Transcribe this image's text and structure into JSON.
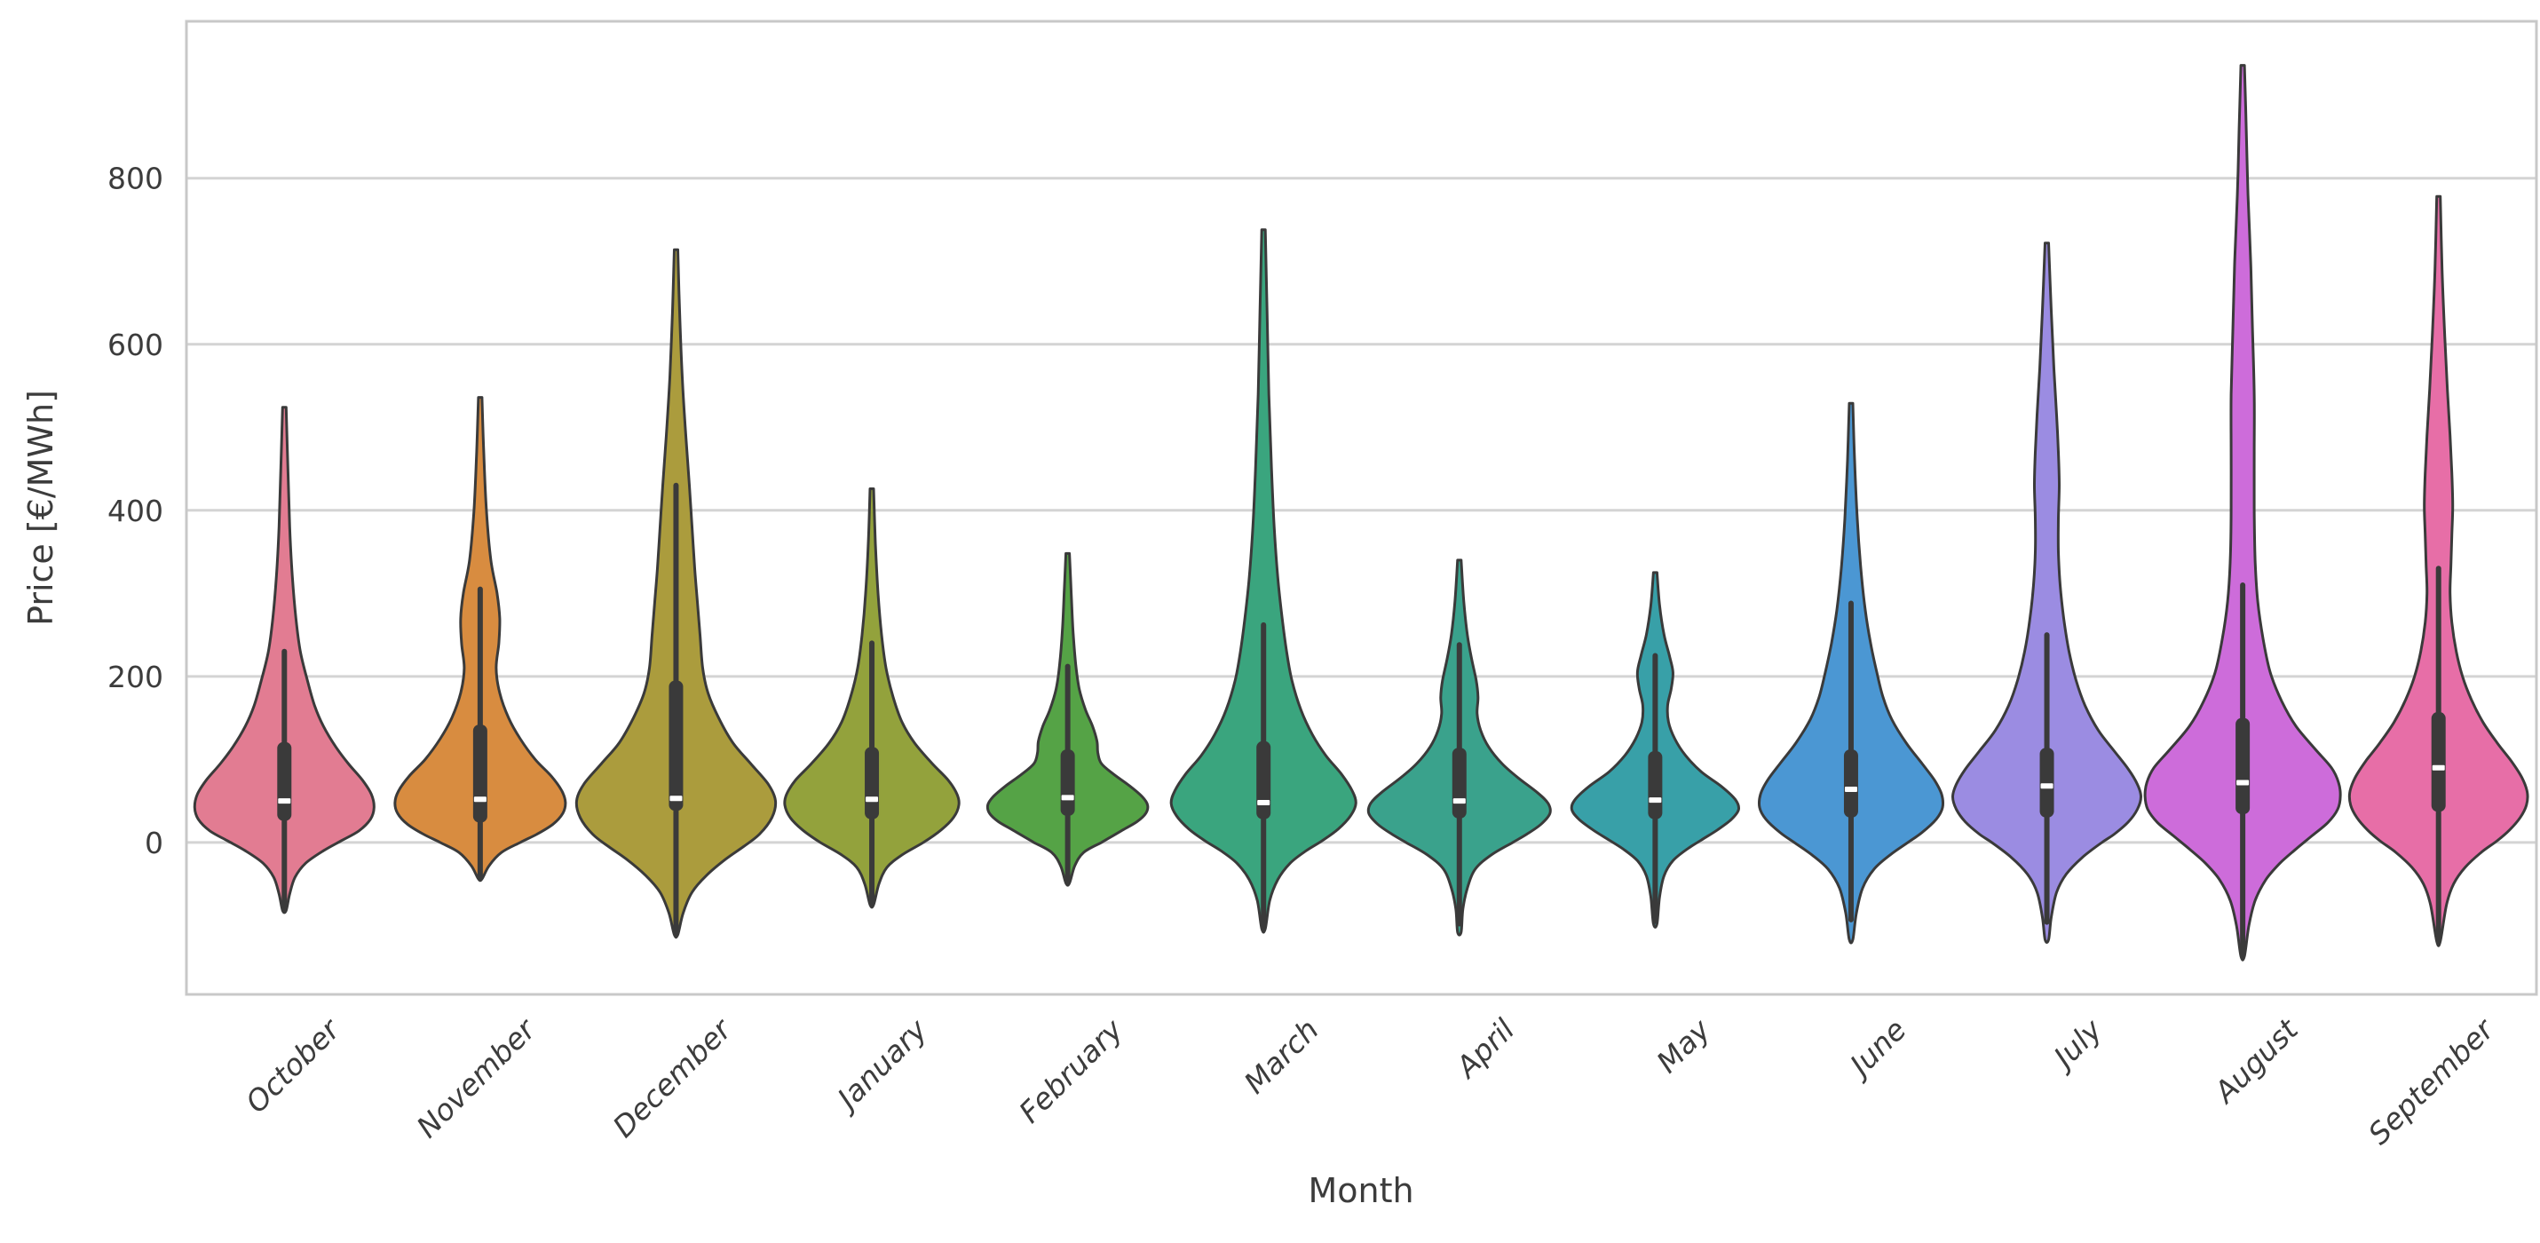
{
  "chart_data": {
    "type": "violin",
    "title": "",
    "xlabel": "Month",
    "ylabel": "Price [€/MWh]",
    "categories": [
      "October",
      "November",
      "December",
      "January",
      "February",
      "March",
      "April",
      "May",
      "June",
      "July",
      "August",
      "September"
    ],
    "yticks": [
      0,
      200,
      400,
      600,
      800
    ],
    "ylim": [
      -183,
      989
    ],
    "grid": true,
    "legend": "none",
    "colors": {
      "frame": "#c8c8c8",
      "gridline": "#d4d4d4",
      "ink": "#3c3c3c",
      "violin_edge": "#3a3a3a",
      "box_fill": "#3a3a3a",
      "median": "#ffffff",
      "background": "#ffffff"
    },
    "series": [
      {
        "name": "October",
        "color": "#e27c92",
        "min": -82,
        "max": 524,
        "q1": 26,
        "median": 50,
        "q3": 121,
        "whisker_low": -82,
        "whisker_high": 230,
        "profile": [
          [
            524,
            2
          ],
          [
            450,
            4
          ],
          [
            380,
            6
          ],
          [
            320,
            9
          ],
          [
            270,
            13
          ],
          [
            230,
            18
          ],
          [
            195,
            26
          ],
          [
            165,
            34
          ],
          [
            140,
            44
          ],
          [
            115,
            58
          ],
          [
            95,
            72
          ],
          [
            75,
            88
          ],
          [
            58,
            98
          ],
          [
            42,
            101
          ],
          [
            28,
            97
          ],
          [
            14,
            84
          ],
          [
            2,
            64
          ],
          [
            -10,
            44
          ],
          [
            -25,
            24
          ],
          [
            -42,
            12
          ],
          [
            -62,
            6
          ],
          [
            -82,
            2
          ]
        ]
      },
      {
        "name": "November",
        "color": "#d88c40",
        "min": -44,
        "max": 536,
        "q1": 24,
        "median": 52,
        "q3": 142,
        "whisker_low": -44,
        "whisker_high": 305,
        "profile": [
          [
            536,
            2
          ],
          [
            470,
            4
          ],
          [
            400,
            7
          ],
          [
            340,
            12
          ],
          [
            300,
            19
          ],
          [
            270,
            22
          ],
          [
            240,
            21
          ],
          [
            210,
            18
          ],
          [
            180,
            22
          ],
          [
            150,
            32
          ],
          [
            125,
            45
          ],
          [
            100,
            62
          ],
          [
            80,
            80
          ],
          [
            62,
            92
          ],
          [
            48,
            96
          ],
          [
            35,
            93
          ],
          [
            22,
            82
          ],
          [
            10,
            64
          ],
          [
            0,
            45
          ],
          [
            -12,
            24
          ],
          [
            -28,
            10
          ],
          [
            -44,
            2
          ]
        ]
      },
      {
        "name": "December",
        "color": "#ab9c3d",
        "min": -111,
        "max": 714,
        "q1": 38,
        "median": 53,
        "q3": 195,
        "whisker_low": -111,
        "whisker_high": 430,
        "profile": [
          [
            714,
            2
          ],
          [
            640,
            4
          ],
          [
            560,
            7
          ],
          [
            490,
            11
          ],
          [
            430,
            15
          ],
          [
            380,
            18
          ],
          [
            330,
            21
          ],
          [
            290,
            24
          ],
          [
            250,
            27
          ],
          [
            210,
            30
          ],
          [
            180,
            36
          ],
          [
            150,
            48
          ],
          [
            120,
            64
          ],
          [
            95,
            84
          ],
          [
            70,
            104
          ],
          [
            50,
            112
          ],
          [
            30,
            108
          ],
          [
            10,
            94
          ],
          [
            -5,
            76
          ],
          [
            -20,
            56
          ],
          [
            -40,
            34
          ],
          [
            -60,
            18
          ],
          [
            -85,
            8
          ],
          [
            -111,
            2
          ]
        ]
      },
      {
        "name": "January",
        "color": "#93a23c",
        "min": -75,
        "max": 426,
        "q1": 28,
        "median": 52,
        "q3": 115,
        "whisker_low": -75,
        "whisker_high": 240,
        "profile": [
          [
            426,
            2
          ],
          [
            360,
            4
          ],
          [
            300,
            7
          ],
          [
            250,
            11
          ],
          [
            210,
            16
          ],
          [
            175,
            24
          ],
          [
            145,
            34
          ],
          [
            120,
            48
          ],
          [
            95,
            68
          ],
          [
            75,
            86
          ],
          [
            58,
            96
          ],
          [
            45,
            98
          ],
          [
            30,
            92
          ],
          [
            15,
            78
          ],
          [
            0,
            58
          ],
          [
            -15,
            34
          ],
          [
            -30,
            17
          ],
          [
            -50,
            8
          ],
          [
            -75,
            2
          ]
        ]
      },
      {
        "name": "February",
        "color": "#55a346",
        "min": -49,
        "max": 348,
        "q1": 32,
        "median": 54,
        "q3": 112,
        "whisker_low": -49,
        "whisker_high": 212,
        "profile": [
          [
            348,
            2
          ],
          [
            300,
            4
          ],
          [
            255,
            6
          ],
          [
            215,
            9
          ],
          [
            185,
            13
          ],
          [
            160,
            20
          ],
          [
            140,
            28
          ],
          [
            122,
            33
          ],
          [
            108,
            34
          ],
          [
            95,
            38
          ],
          [
            82,
            52
          ],
          [
            68,
            70
          ],
          [
            55,
            84
          ],
          [
            45,
            90
          ],
          [
            35,
            88
          ],
          [
            25,
            78
          ],
          [
            15,
            62
          ],
          [
            5,
            46
          ],
          [
            0,
            38
          ],
          [
            -12,
            18
          ],
          [
            -28,
            8
          ],
          [
            -49,
            2
          ]
        ]
      },
      {
        "name": "March",
        "color": "#3aa57e",
        "min": -104,
        "max": 738,
        "q1": 28,
        "median": 48,
        "q3": 122,
        "whisker_low": -104,
        "whisker_high": 262,
        "profile": [
          [
            738,
            2
          ],
          [
            640,
            4
          ],
          [
            540,
            6
          ],
          [
            450,
            9
          ],
          [
            380,
            12
          ],
          [
            320,
            16
          ],
          [
            270,
            21
          ],
          [
            230,
            26
          ],
          [
            195,
            32
          ],
          [
            160,
            42
          ],
          [
            130,
            55
          ],
          [
            105,
            70
          ],
          [
            82,
            88
          ],
          [
            62,
            100
          ],
          [
            47,
            104
          ],
          [
            32,
            98
          ],
          [
            16,
            84
          ],
          [
            2,
            66
          ],
          [
            -10,
            48
          ],
          [
            -25,
            30
          ],
          [
            -45,
            16
          ],
          [
            -70,
            7
          ],
          [
            -104,
            2
          ]
        ]
      },
      {
        "name": "April",
        "color": "#3aa28c",
        "min": -108,
        "max": 340,
        "q1": 29,
        "median": 50,
        "q3": 114,
        "whisker_low": -98,
        "whisker_high": 238,
        "profile": [
          [
            340,
            2
          ],
          [
            290,
            5
          ],
          [
            250,
            9
          ],
          [
            220,
            14
          ],
          [
            195,
            19
          ],
          [
            175,
            21
          ],
          [
            155,
            20
          ],
          [
            135,
            24
          ],
          [
            115,
            33
          ],
          [
            95,
            48
          ],
          [
            78,
            66
          ],
          [
            60,
            88
          ],
          [
            47,
            100
          ],
          [
            35,
            102
          ],
          [
            22,
            92
          ],
          [
            10,
            76
          ],
          [
            0,
            60
          ],
          [
            -15,
            36
          ],
          [
            -32,
            18
          ],
          [
            -55,
            9
          ],
          [
            -80,
            4
          ],
          [
            -108,
            2
          ]
        ]
      },
      {
        "name": "May",
        "color": "#38a0a8",
        "min": -98,
        "max": 325,
        "q1": 28,
        "median": 51,
        "q3": 110,
        "whisker_low": -95,
        "whisker_high": 225,
        "profile": [
          [
            325,
            2
          ],
          [
            285,
            5
          ],
          [
            250,
            10
          ],
          [
            225,
            16
          ],
          [
            205,
            20
          ],
          [
            185,
            18
          ],
          [
            165,
            14
          ],
          [
            145,
            15
          ],
          [
            125,
            22
          ],
          [
            105,
            34
          ],
          [
            85,
            52
          ],
          [
            68,
            74
          ],
          [
            52,
            90
          ],
          [
            40,
            94
          ],
          [
            28,
            86
          ],
          [
            15,
            70
          ],
          [
            3,
            52
          ],
          [
            -8,
            36
          ],
          [
            -22,
            20
          ],
          [
            -40,
            10
          ],
          [
            -65,
            5
          ],
          [
            -98,
            2
          ]
        ]
      },
      {
        "name": "June",
        "color": "#4b97d3",
        "min": -117,
        "max": 529,
        "q1": 30,
        "median": 64,
        "q3": 112,
        "whisker_low": -93,
        "whisker_high": 288,
        "profile": [
          [
            529,
            2
          ],
          [
            460,
            4
          ],
          [
            390,
            7
          ],
          [
            330,
            11
          ],
          [
            280,
            16
          ],
          [
            240,
            22
          ],
          [
            205,
            29
          ],
          [
            175,
            36
          ],
          [
            148,
            46
          ],
          [
            120,
            62
          ],
          [
            95,
            80
          ],
          [
            75,
            94
          ],
          [
            58,
            102
          ],
          [
            42,
            103
          ],
          [
            28,
            96
          ],
          [
            12,
            80
          ],
          [
            0,
            64
          ],
          [
            -15,
            44
          ],
          [
            -32,
            26
          ],
          [
            -55,
            13
          ],
          [
            -85,
            6
          ],
          [
            -117,
            2
          ]
        ]
      },
      {
        "name": "July",
        "color": "#9b8ce2",
        "min": -117,
        "max": 722,
        "q1": 30,
        "median": 68,
        "q3": 114,
        "whisker_low": -96,
        "whisker_high": 250,
        "profile": [
          [
            722,
            2
          ],
          [
            640,
            5
          ],
          [
            570,
            8
          ],
          [
            515,
            11
          ],
          [
            470,
            13
          ],
          [
            430,
            14
          ],
          [
            390,
            13
          ],
          [
            350,
            13
          ],
          [
            310,
            15
          ],
          [
            270,
            19
          ],
          [
            230,
            25
          ],
          [
            195,
            33
          ],
          [
            165,
            43
          ],
          [
            135,
            58
          ],
          [
            110,
            76
          ],
          [
            88,
            92
          ],
          [
            70,
            102
          ],
          [
            55,
            106
          ],
          [
            40,
            102
          ],
          [
            25,
            92
          ],
          [
            10,
            76
          ],
          [
            0,
            62
          ],
          [
            -18,
            40
          ],
          [
            -38,
            22
          ],
          [
            -60,
            11
          ],
          [
            -90,
            5
          ],
          [
            -117,
            2
          ]
        ]
      },
      {
        "name": "August",
        "color": "#cd6cda",
        "min": -137,
        "max": 936,
        "q1": 34,
        "median": 72,
        "q3": 150,
        "whisker_low": -137,
        "whisker_high": 310,
        "profile": [
          [
            936,
            2
          ],
          [
            860,
            4
          ],
          [
            780,
            6
          ],
          [
            700,
            9
          ],
          [
            620,
            11
          ],
          [
            540,
            13
          ],
          [
            470,
            13
          ],
          [
            400,
            13
          ],
          [
            340,
            14
          ],
          [
            290,
            17
          ],
          [
            245,
            23
          ],
          [
            205,
            31
          ],
          [
            170,
            44
          ],
          [
            140,
            60
          ],
          [
            112,
            82
          ],
          [
            90,
            100
          ],
          [
            72,
            108
          ],
          [
            56,
            110
          ],
          [
            40,
            107
          ],
          [
            24,
            96
          ],
          [
            8,
            78
          ],
          [
            -8,
            60
          ],
          [
            -25,
            42
          ],
          [
            -45,
            26
          ],
          [
            -70,
            14
          ],
          [
            -100,
            7
          ],
          [
            -137,
            2
          ]
        ]
      },
      {
        "name": "September",
        "color": "#e76ea7",
        "min": -119,
        "max": 778,
        "q1": 37,
        "median": 90,
        "q3": 157,
        "whisker_low": -119,
        "whisker_high": 330,
        "profile": [
          [
            778,
            2
          ],
          [
            690,
            4
          ],
          [
            610,
            7
          ],
          [
            545,
            10
          ],
          [
            490,
            13
          ],
          [
            445,
            15
          ],
          [
            405,
            16
          ],
          [
            370,
            15
          ],
          [
            335,
            14
          ],
          [
            300,
            13
          ],
          [
            265,
            15
          ],
          [
            230,
            20
          ],
          [
            200,
            27
          ],
          [
            172,
            37
          ],
          [
            145,
            50
          ],
          [
            120,
            66
          ],
          [
            98,
            82
          ],
          [
            78,
            94
          ],
          [
            60,
            100
          ],
          [
            45,
            99
          ],
          [
            30,
            92
          ],
          [
            15,
            80
          ],
          [
            2,
            66
          ],
          [
            -12,
            48
          ],
          [
            -30,
            30
          ],
          [
            -50,
            17
          ],
          [
            -75,
            9
          ],
          [
            -119,
            2
          ]
        ]
      }
    ]
  }
}
